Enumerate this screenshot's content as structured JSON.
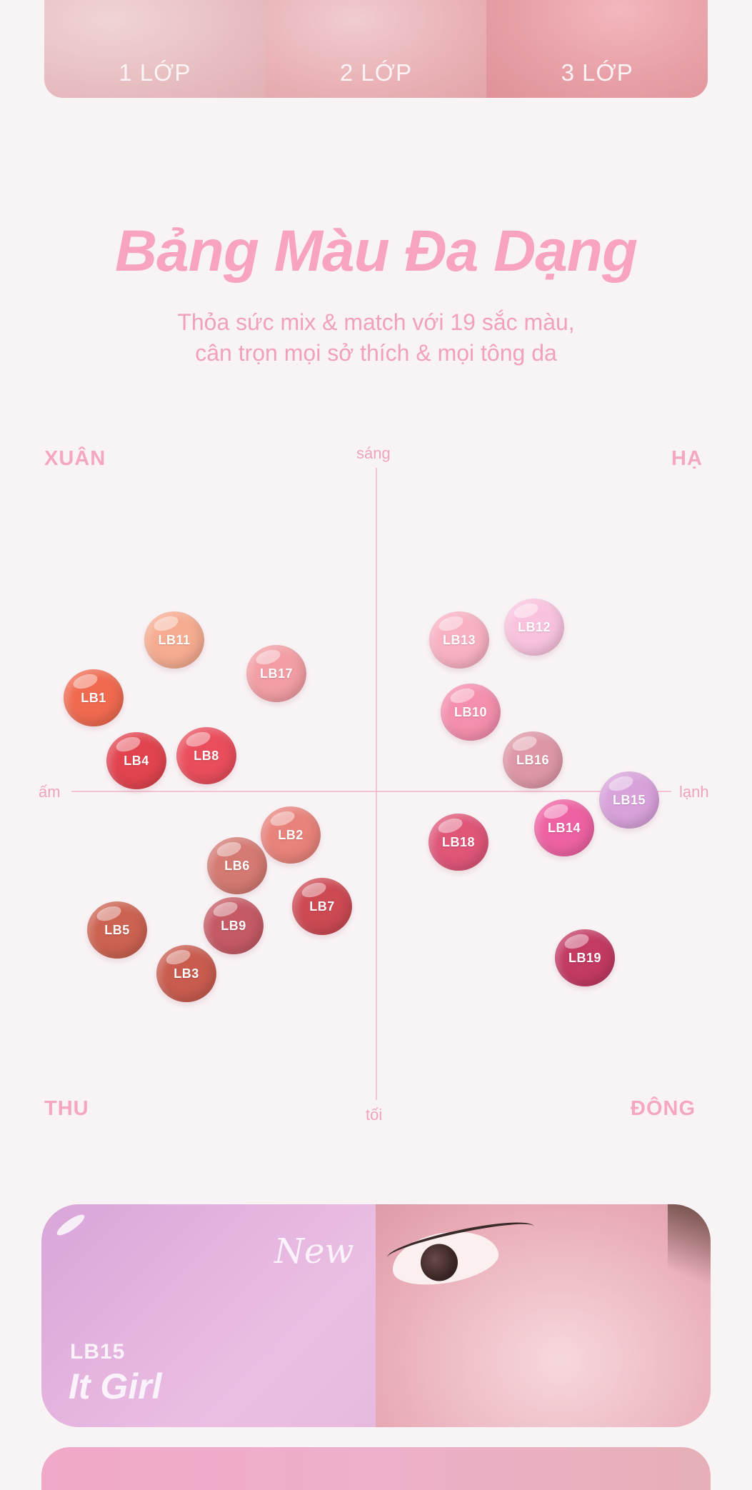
{
  "layers": [
    "1 LỚP",
    "2 LỚP",
    "3 LỚP"
  ],
  "title": "Bảng Màu Đa Dạng",
  "subtitle_line1": "Thỏa sức mix & match với 19 sắc màu,",
  "subtitle_line2": "cân trọn mọi sở thích & mọi tông da",
  "seasons": {
    "spring": "XUÂN",
    "summer": "HẠ",
    "autumn": "THU",
    "winter": "ĐÔNG"
  },
  "axes": {
    "top": "sáng",
    "bottom": "tối",
    "left": "ấm",
    "right": "lạnh"
  },
  "shades": [
    {
      "code": "LB11",
      "color": "#f6ac91"
    },
    {
      "code": "LB17",
      "color": "#f29ea4"
    },
    {
      "code": "LB1",
      "color": "#f06a50"
    },
    {
      "code": "LB4",
      "color": "#e2444f"
    },
    {
      "code": "LB8",
      "color": "#ea4e5c"
    },
    {
      "code": "LB13",
      "color": "#f8b1c3"
    },
    {
      "code": "LB12",
      "color": "#f9c3de"
    },
    {
      "code": "LB10",
      "color": "#f48fad"
    },
    {
      "code": "LB16",
      "color": "#de97a7"
    },
    {
      "code": "LB15",
      "color": "#d8a2db"
    },
    {
      "code": "LB14",
      "color": "#ee62a3"
    },
    {
      "code": "LB18",
      "color": "#df5677"
    },
    {
      "code": "LB19",
      "color": "#c33a63"
    },
    {
      "code": "LB2",
      "color": "#e8837b"
    },
    {
      "code": "LB6",
      "color": "#d47a72"
    },
    {
      "code": "LB7",
      "color": "#cd4a53"
    },
    {
      "code": "LB5",
      "color": "#cc6251"
    },
    {
      "code": "LB9",
      "color": "#c55a65"
    },
    {
      "code": "LB3",
      "color": "#c95c4f"
    }
  ],
  "feature": {
    "new_label": "New",
    "code": "LB15",
    "name": "It Girl"
  }
}
